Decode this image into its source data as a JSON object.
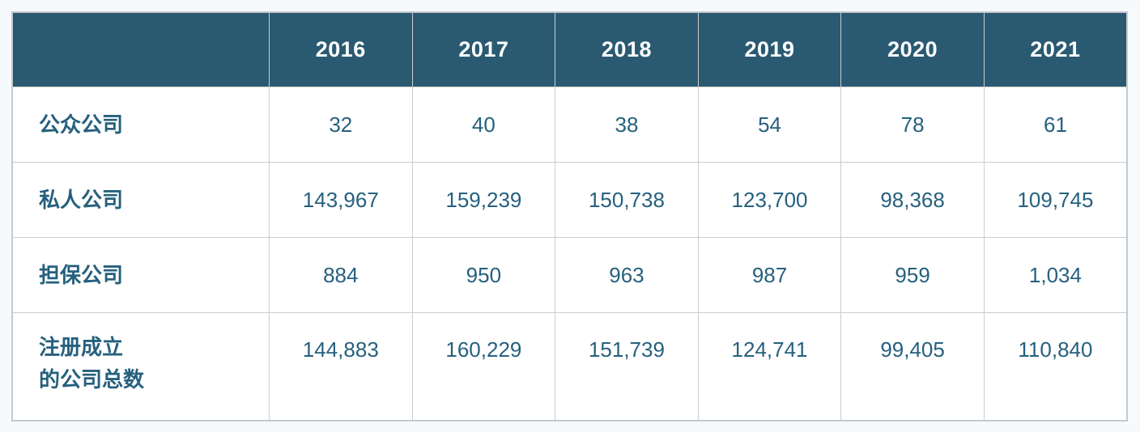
{
  "page": {
    "background_color": "#f6fafd"
  },
  "table": {
    "header_bg_color": "#2a5a72",
    "header_text_color": "#ffffff",
    "body_text_color": "#26607e",
    "border_color": "#cccccc",
    "outer_border_color": "#c6c9cc",
    "columns": [
      "",
      "2016",
      "2017",
      "2018",
      "2019",
      "2020",
      "2021"
    ],
    "rows": [
      {
        "label": "公众公司",
        "values": [
          "32",
          "40",
          "38",
          "54",
          "78",
          "61"
        ]
      },
      {
        "label": "私人公司",
        "values": [
          "143,967",
          "159,239",
          "150,738",
          "123,700",
          "98,368",
          "109,745"
        ]
      },
      {
        "label": "担保公司",
        "values": [
          "884",
          "950",
          "963",
          "987",
          "959",
          "1,034"
        ]
      },
      {
        "label": "注册成立\n的公司总数",
        "values": [
          "144,883",
          "160,229",
          "151,739",
          "124,741",
          "99,405",
          "110,840"
        ]
      }
    ]
  },
  "chart_data": {
    "type": "table",
    "title": "",
    "columns": [
      "2016",
      "2017",
      "2018",
      "2019",
      "2020",
      "2021"
    ],
    "rows": [
      {
        "label": "公众公司",
        "values": [
          32,
          40,
          38,
          54,
          78,
          61
        ]
      },
      {
        "label": "私人公司",
        "values": [
          143967,
          159239,
          150738,
          123700,
          98368,
          109745
        ]
      },
      {
        "label": "担保公司",
        "values": [
          884,
          950,
          963,
          987,
          959,
          1034
        ]
      },
      {
        "label": "注册成立的公司总数",
        "values": [
          144883,
          160229,
          151739,
          124741,
          99405,
          110840
        ]
      }
    ]
  }
}
